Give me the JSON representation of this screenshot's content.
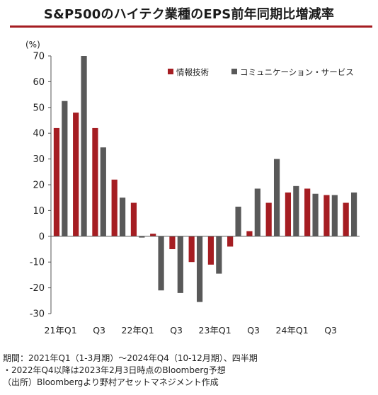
{
  "header": {
    "title": "S&P500のハイテク業種のEPS前年同期比増減率",
    "accent_color": "#a51d22"
  },
  "chart_data": {
    "type": "bar",
    "title": "S&P500のハイテク業種のEPS前年同期比増減率",
    "unit_label": "(%)",
    "xlabel": "",
    "ylabel": "",
    "ylim": [
      -30,
      70
    ],
    "yticks": [
      -30,
      -20,
      -10,
      0,
      10,
      20,
      30,
      40,
      50,
      60,
      70
    ],
    "grid": false,
    "legend_position": "top-right",
    "categories": [
      "2021Q1",
      "2021Q2",
      "2021Q3",
      "2021Q4",
      "2022Q1",
      "2022Q2",
      "2022Q3",
      "2022Q4",
      "2023Q1",
      "2023Q2",
      "2023Q3",
      "2023Q4",
      "2024Q1",
      "2024Q2",
      "2024Q3",
      "2024Q4"
    ],
    "tick_labels": [
      "21年Q1",
      "",
      "Q3",
      "",
      "22年Q1",
      "",
      "Q3",
      "",
      "23年Q1",
      "",
      "Q3",
      "",
      "24年Q1",
      "",
      "Q3",
      ""
    ],
    "series": [
      {
        "name": "情報技術",
        "color": "#a51d22",
        "values": [
          42,
          48,
          42,
          22,
          13,
          1,
          -5,
          -10,
          -11,
          -4,
          2,
          13,
          17,
          18.5,
          16,
          13
        ]
      },
      {
        "name": "コミュニケーション・サービス",
        "color": "#595959",
        "values": [
          52.5,
          70,
          34.5,
          15,
          -0.5,
          -21,
          -22,
          -25.5,
          -14.5,
          11.5,
          18.5,
          30,
          19.5,
          16.5,
          16,
          17
        ]
      }
    ]
  },
  "notes": [
    "期間：2021年Q1（1-3月期）～2024年Q4（10-12月期）、四半期",
    "・2022年Q4以降は2023年2月3日時点のBloomberg予想",
    "（出所）Bloombergより野村アセットマネジメント作成"
  ]
}
